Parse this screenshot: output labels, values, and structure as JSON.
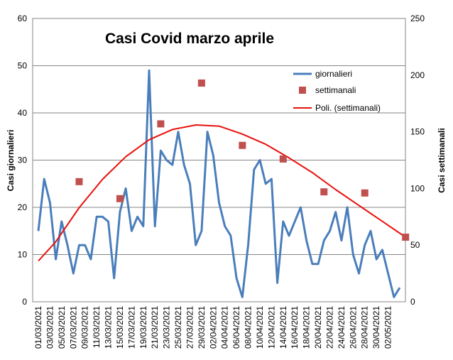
{
  "chart_data": {
    "type": "line",
    "title": "Casi Covid marzo aprile",
    "y_left": {
      "label": "Casi giornalieri",
      "min": 0,
      "max": 60,
      "ticks": [
        0,
        10,
        20,
        30,
        40,
        50,
        60
      ]
    },
    "y_right": {
      "label": "Casi settimanali",
      "min": 0,
      "max": 250,
      "ticks": [
        0,
        50,
        100,
        150,
        200,
        250
      ]
    },
    "grid": true,
    "legend_position": "top-right",
    "x_labels": [
      "01/03/2021",
      "03/03/2021",
      "05/03/2021",
      "07/03/2021",
      "09/03/2021",
      "11/03/2021",
      "13/03/2021",
      "15/03/2021",
      "17/03/2021",
      "19/03/2021",
      "21/03/2021",
      "23/03/2021",
      "25/03/2021",
      "27/03/2021",
      "29/03/2021",
      "02/04/2021",
      "04/04/2021",
      "06/04/2021",
      "08/04/2021",
      "10/04/2021",
      "12/04/2021",
      "14/04/2021",
      "16/04/2021",
      "18/04/2021",
      "20/04/2021",
      "22/04/2021",
      "24/04/2021",
      "26/04/2021",
      "28/04/2021",
      "30/04/2021",
      "02/05/2021"
    ],
    "series": [
      {
        "name": "giornalieri",
        "kind": "line",
        "axis": "left",
        "color": "#4a7ebb",
        "values": [
          15,
          26,
          21,
          9,
          17,
          12,
          6,
          12,
          12,
          9,
          18,
          18,
          17,
          5,
          19,
          24,
          15,
          18,
          16,
          49,
          16,
          32,
          30,
          29,
          36,
          29,
          25,
          12,
          15,
          36,
          31,
          21,
          16,
          14,
          5,
          1,
          12,
          28,
          30,
          25,
          26,
          4,
          17,
          14,
          17,
          20,
          13,
          8,
          8,
          13,
          15,
          19,
          13,
          20,
          10,
          6,
          12,
          15,
          9,
          11,
          6,
          1,
          3
        ]
      },
      {
        "name": "settimanali",
        "kind": "marker",
        "axis": "right",
        "color": "#c0504d",
        "points": [
          [
            7,
            106
          ],
          [
            14,
            91
          ],
          [
            21,
            157
          ],
          [
            28,
            193
          ],
          [
            35,
            138
          ],
          [
            42,
            126
          ],
          [
            49,
            97
          ],
          [
            56,
            96
          ],
          [
            63,
            57
          ]
        ]
      },
      {
        "name": "Poli. (settimanali)",
        "kind": "trend",
        "axis": "right",
        "color": "#e8100c",
        "points": [
          [
            0,
            36
          ],
          [
            3,
            53
          ],
          [
            7,
            83
          ],
          [
            11,
            108
          ],
          [
            15,
            128
          ],
          [
            19,
            143
          ],
          [
            23,
            152
          ],
          [
            27,
            156
          ],
          [
            31,
            155
          ],
          [
            35,
            148
          ],
          [
            39,
            139
          ],
          [
            43,
            127
          ],
          [
            47,
            114
          ],
          [
            51,
            99
          ],
          [
            55,
            85
          ],
          [
            59,
            71
          ],
          [
            63,
            57
          ]
        ]
      }
    ]
  }
}
